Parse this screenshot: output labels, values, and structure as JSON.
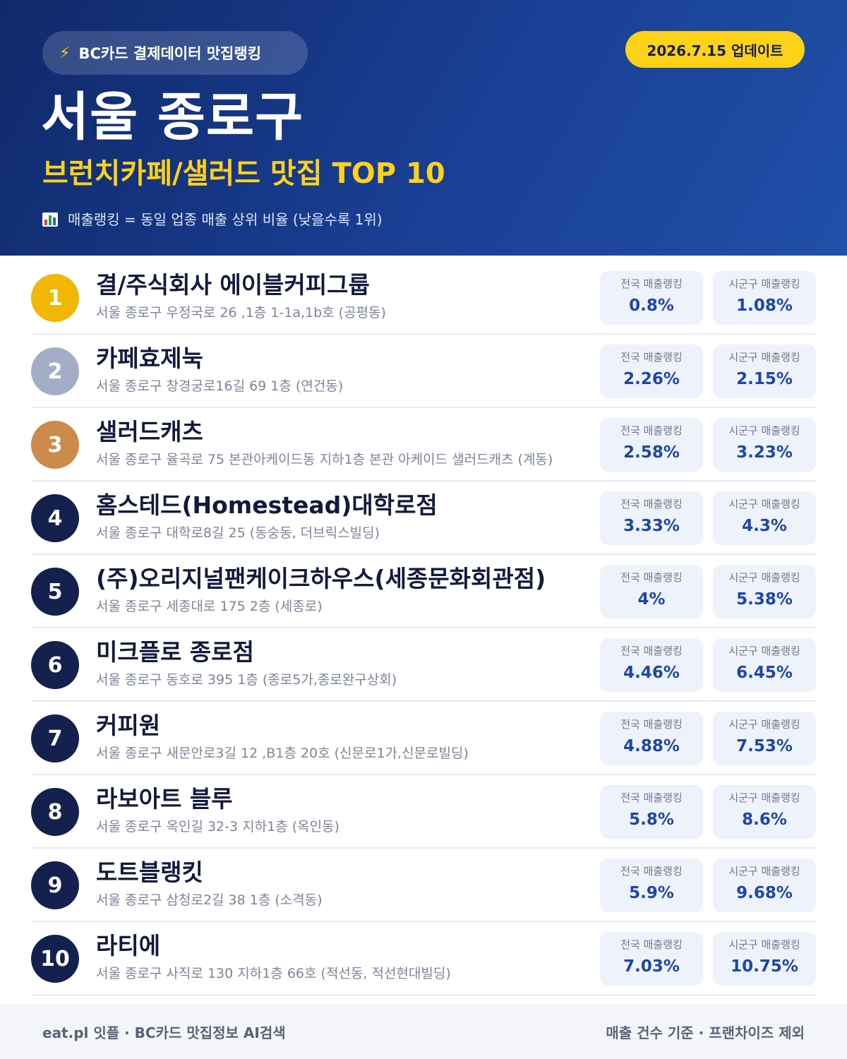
{
  "header": {
    "badge_label": "BC카드 결제데이터 맛집랭킹",
    "update_label": "2026.7.15 업데이트",
    "title": "서울 종로구",
    "subtitle": "브런치카페/샐러드 맛집 TOP 10",
    "note": "매출랭킹 = 동일 업종 매출 상위 비율 (낮을수록 1위)"
  },
  "labels": {
    "national": "전국 매출랭킹",
    "district": "시군구 매출랭킹"
  },
  "rank_colors": {
    "gold": "#f2b705",
    "silver": "#a3aec6",
    "bronze": "#cc8a4b",
    "default": "#14204e"
  },
  "items": [
    {
      "rank": "1",
      "name": "결/주식회사 에이블커피그룹",
      "address": "서울 종로구 우정국로 26 ,1층 1-1a,1b호 (공평동)",
      "national": "0.8%",
      "district": "1.08%"
    },
    {
      "rank": "2",
      "name": "카페효제눅",
      "address": "서울 종로구 창경궁로16길 69 1층 (연건동)",
      "national": "2.26%",
      "district": "2.15%"
    },
    {
      "rank": "3",
      "name": "샐러드캐츠",
      "address": "서울 종로구 율곡로 75 본관아케이드동 지하1층 본관 아케이드 샐러드캐츠 (계동)",
      "national": "2.58%",
      "district": "3.23%"
    },
    {
      "rank": "4",
      "name": "홈스테드(Homestead)대학로점",
      "address": "서울 종로구 대학로8길 25 (동숭동, 더브릭스빌딩)",
      "national": "3.33%",
      "district": "4.3%"
    },
    {
      "rank": "5",
      "name": "(주)오리지널팬케이크하우스(세종문화회관점)",
      "address": "서울 종로구 세종대로 175 2층 (세종로)",
      "national": "4%",
      "district": "5.38%"
    },
    {
      "rank": "6",
      "name": "미크플로 종로점",
      "address": "서울 종로구 동호로 395 1층 (종로5가,종로완구상회)",
      "national": "4.46%",
      "district": "6.45%"
    },
    {
      "rank": "7",
      "name": "커피원",
      "address": "서울 종로구 새문안로3길 12 ,B1층 20호 (신문로1가,신문로빌딩)",
      "national": "4.88%",
      "district": "7.53%"
    },
    {
      "rank": "8",
      "name": "라보아트 블루",
      "address": "서울 종로구 옥인길 32-3 지하1층 (옥인동)",
      "national": "5.8%",
      "district": "8.6%"
    },
    {
      "rank": "9",
      "name": "도트블랭킷",
      "address": "서울 종로구 삼청로2길 38 1층 (소격동)",
      "national": "5.9%",
      "district": "9.68%"
    },
    {
      "rank": "10",
      "name": "라티에",
      "address": "서울 종로구 사직로 130 지하1층 66호 (적선동, 적선현대빌딩)",
      "national": "7.03%",
      "district": "10.75%"
    }
  ],
  "footer": {
    "left": "eat.pl 잇플 · BC카드 맛집정보 AI검색",
    "right": "매출 건수 기준 · 프랜차이즈 제외"
  }
}
